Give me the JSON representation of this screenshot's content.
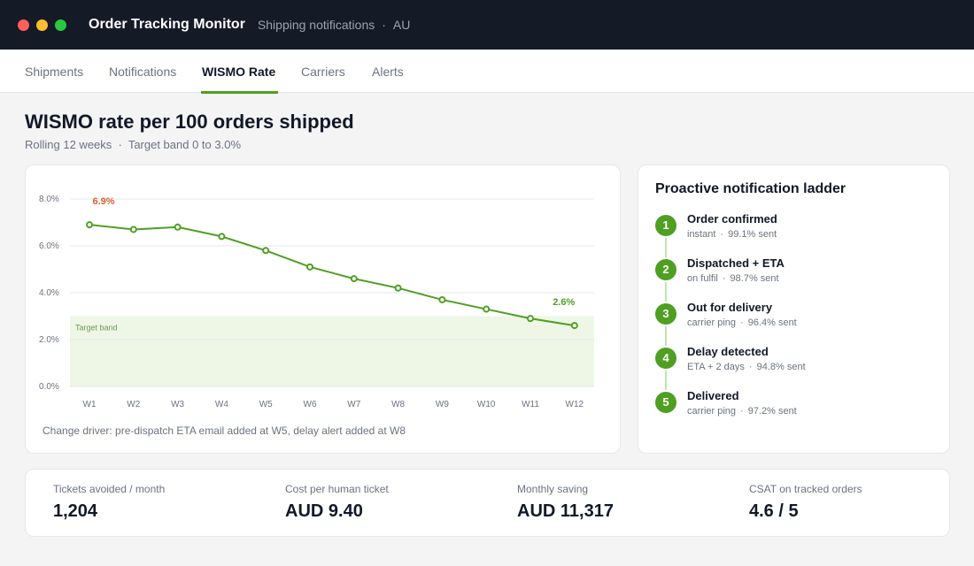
{
  "titlebar": {
    "window_controls": [
      "close",
      "minimize",
      "maximize"
    ],
    "control_colors": [
      "#ff5f57",
      "#febc2e",
      "#28c840"
    ],
    "title": "Order Tracking Monitor",
    "subtitle": "Shipping notifications",
    "separator": "·",
    "region": "AU"
  },
  "tabs": [
    {
      "label": "Shipments",
      "active": false
    },
    {
      "label": "Notifications",
      "active": false
    },
    {
      "label": "WISMO Rate",
      "active": true
    },
    {
      "label": "Carriers",
      "active": false
    },
    {
      "label": "Alerts",
      "active": false
    }
  ],
  "page": {
    "title": "WISMO rate per 100 orders shipped",
    "subtitle": "Rolling 12 weeks  ·  Target band 0 to 3.0%"
  },
  "chart_data": {
    "type": "line",
    "title": "",
    "categories": [
      "W1",
      "W2",
      "W3",
      "W4",
      "W5",
      "W6",
      "W7",
      "W8",
      "W9",
      "W10",
      "W11",
      "W12"
    ],
    "series": [
      {
        "values": [
          6.9,
          6.7,
          6.8,
          6.4,
          5.8,
          5.1,
          4.6,
          4.2,
          3.7,
          3.3,
          2.9,
          2.6
        ],
        "color": "#4f9f22"
      }
    ],
    "ylim": [
      0,
      8
    ],
    "yticks": [
      "0.0%",
      "2.0%",
      "4.0%",
      "6.0%",
      "8.0%"
    ],
    "target_band": {
      "label": "Target band",
      "from": 0,
      "to": 3.0,
      "color": "#eef7e6"
    },
    "annotations": [
      {
        "index": 0,
        "text": "6.9%",
        "color": "#d9622b"
      },
      {
        "index": 11,
        "text": "2.6%",
        "color": "#4f9f22"
      }
    ],
    "grid": true,
    "xlabel": "",
    "ylabel": ""
  },
  "chart_note": "Change driver: pre-dispatch ETA email added at W5, delay alert added at W8",
  "ladder": {
    "title": "Proactive notification ladder",
    "steps": [
      {
        "num": "1",
        "title": "Order confirmed",
        "trigger": "instant",
        "rate": "99.1% sent"
      },
      {
        "num": "2",
        "title": "Dispatched + ETA",
        "trigger": "on fulfil",
        "rate": "98.7% sent"
      },
      {
        "num": "3",
        "title": "Out for delivery",
        "trigger": "carrier ping",
        "rate": "96.4% sent"
      },
      {
        "num": "4",
        "title": "Delay detected",
        "trigger": "ETA + 2 days",
        "rate": "94.8% sent"
      },
      {
        "num": "5",
        "title": "Delivered",
        "trigger": "carrier ping",
        "rate": "97.2% sent"
      }
    ],
    "meta_separator": "·"
  },
  "stats": [
    {
      "label": "Tickets avoided / month",
      "value": "1,204"
    },
    {
      "label": "Cost per human ticket",
      "value": "AUD 9.40"
    },
    {
      "label": "Monthly saving",
      "value": "AUD 11,317"
    },
    {
      "label": "CSAT on tracked orders",
      "value": "4.6 / 5"
    }
  ]
}
